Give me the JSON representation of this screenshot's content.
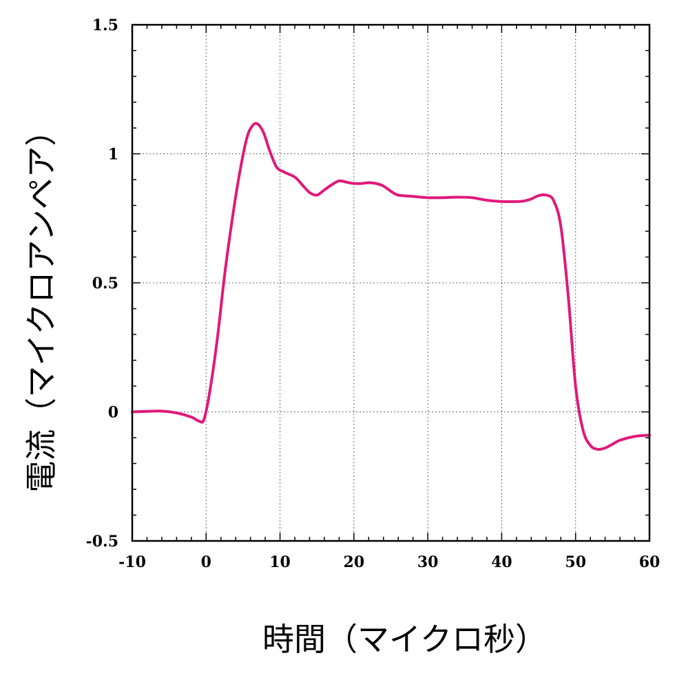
{
  "chart_data": {
    "type": "line",
    "title": "",
    "xlabel": "時間（マイクロ秒）",
    "ylabel": "電流（マイクロアンペア）",
    "xlim": [
      -10,
      60
    ],
    "ylim": [
      -0.5,
      1.5
    ],
    "xticks": [
      -10,
      0,
      10,
      20,
      30,
      40,
      50,
      60
    ],
    "xtick_labels": [
      "-10",
      "0",
      "10",
      "20",
      "30",
      "40",
      "50",
      "60"
    ],
    "yticks": [
      -0.5,
      0,
      0.5,
      1,
      1.5
    ],
    "ytick_labels": [
      "-0.5",
      "0",
      "0.5",
      "1",
      "1.5"
    ],
    "grid": true,
    "line_color": "#e0197a",
    "series": [
      {
        "x": [
          -10,
          -8,
          -6,
          -4,
          -2,
          -1,
          -0.3,
          0.5,
          1.5,
          2.5,
          3.5,
          4.5,
          5.5,
          6.3,
          7,
          7.8,
          8.5,
          9.5,
          10.5,
          12,
          13,
          14,
          15,
          16,
          17,
          18,
          19,
          20,
          21,
          22,
          23,
          24,
          25,
          26,
          28,
          30,
          32,
          34,
          36,
          38,
          40,
          42,
          43,
          44,
          45,
          46,
          47,
          48,
          49,
          50,
          51,
          52,
          53,
          54,
          55,
          56,
          58,
          60
        ],
        "y": [
          0,
          0.002,
          0.003,
          -0.004,
          -0.02,
          -0.035,
          -0.03,
          0.08,
          0.28,
          0.53,
          0.74,
          0.92,
          1.06,
          1.11,
          1.115,
          1.08,
          1.02,
          0.95,
          0.93,
          0.91,
          0.88,
          0.85,
          0.84,
          0.86,
          0.88,
          0.895,
          0.89,
          0.885,
          0.885,
          0.888,
          0.885,
          0.875,
          0.855,
          0.84,
          0.835,
          0.83,
          0.83,
          0.832,
          0.83,
          0.82,
          0.815,
          0.815,
          0.817,
          0.825,
          0.838,
          0.84,
          0.82,
          0.72,
          0.45,
          0.1,
          -0.07,
          -0.13,
          -0.145,
          -0.14,
          -0.125,
          -0.11,
          -0.095,
          -0.09
        ]
      }
    ]
  }
}
